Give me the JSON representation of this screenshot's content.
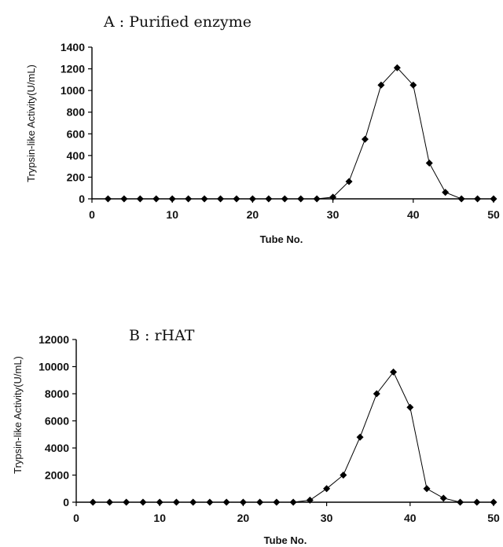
{
  "chart_data": [
    {
      "type": "line",
      "title": "A : Purified enzyme",
      "xlabel": "Tube No.",
      "ylabel": "Trypsin-like Activity(U/mL)",
      "xlim": [
        0,
        50
      ],
      "ylim": [
        0,
        1400
      ],
      "xticks": [
        0,
        10,
        20,
        30,
        40,
        50
      ],
      "yticks": [
        0,
        200,
        400,
        600,
        800,
        1000,
        1200,
        1400
      ],
      "grid": false,
      "marker": "diamond",
      "series": [
        {
          "x": [
            2,
            4,
            6,
            8,
            10,
            12,
            14,
            16,
            18,
            20,
            22,
            24,
            26,
            28,
            30,
            32,
            34,
            36,
            38,
            40,
            42,
            44,
            46,
            48,
            50
          ],
          "y": [
            0,
            0,
            0,
            0,
            0,
            0,
            0,
            0,
            0,
            0,
            0,
            0,
            0,
            0,
            15,
            160,
            550,
            1050,
            1210,
            1050,
            330,
            60,
            0,
            0,
            0
          ]
        }
      ]
    },
    {
      "type": "line",
      "title": "B : rHAT",
      "xlabel": "Tube No.",
      "ylabel": "Trypsin-like Activity(U/mL)",
      "xlim": [
        0,
        50
      ],
      "ylim": [
        0,
        12000
      ],
      "xticks": [
        0,
        10,
        20,
        30,
        40,
        50
      ],
      "yticks": [
        0,
        2000,
        4000,
        6000,
        8000,
        10000,
        12000
      ],
      "grid": false,
      "marker": "diamond",
      "series": [
        {
          "x": [
            2,
            4,
            6,
            8,
            10,
            12,
            14,
            16,
            18,
            20,
            22,
            24,
            26,
            28,
            30,
            32,
            34,
            36,
            38,
            40,
            42,
            44,
            46,
            48,
            50
          ],
          "y": [
            0,
            0,
            0,
            0,
            0,
            0,
            0,
            0,
            0,
            0,
            0,
            0,
            0,
            150,
            1000,
            2000,
            4800,
            8000,
            9600,
            7000,
            1000,
            300,
            0,
            0,
            0
          ]
        }
      ]
    }
  ]
}
